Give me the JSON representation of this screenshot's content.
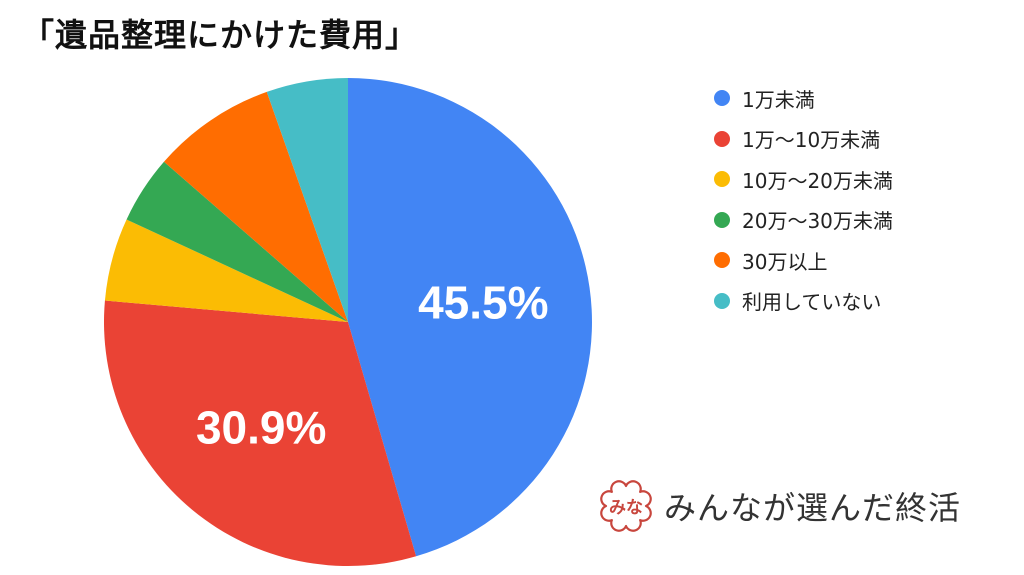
{
  "title": "「遺品整理にかけた費用」",
  "chart_data": {
    "type": "pie",
    "start_angle_deg": 0,
    "direction": "clockwise",
    "slices": [
      {
        "label": "1万未満",
        "value": 45.5,
        "color": "#4285F4",
        "data_label": "45.5%"
      },
      {
        "label": "1万〜10万未満",
        "value": 30.9,
        "color": "#EA4335",
        "data_label": "30.9%"
      },
      {
        "label": "10万〜20万未満",
        "value": 5.5,
        "color": "#FBBC04",
        "data_label": ""
      },
      {
        "label": "20万〜30万未満",
        "value": 4.5,
        "color": "#34A853",
        "data_label": ""
      },
      {
        "label": "30万以上",
        "value": 8.2,
        "color": "#FF6D01",
        "data_label": ""
      },
      {
        "label": "利用していない",
        "value": 5.4,
        "color": "#46BDC6",
        "data_label": ""
      }
    ],
    "legend_position": "right"
  },
  "brand": {
    "logo_text": "みな",
    "name": "みんなが選んだ終活",
    "color": "#C8463D",
    "logo_icon": "minna-logo-icon"
  }
}
